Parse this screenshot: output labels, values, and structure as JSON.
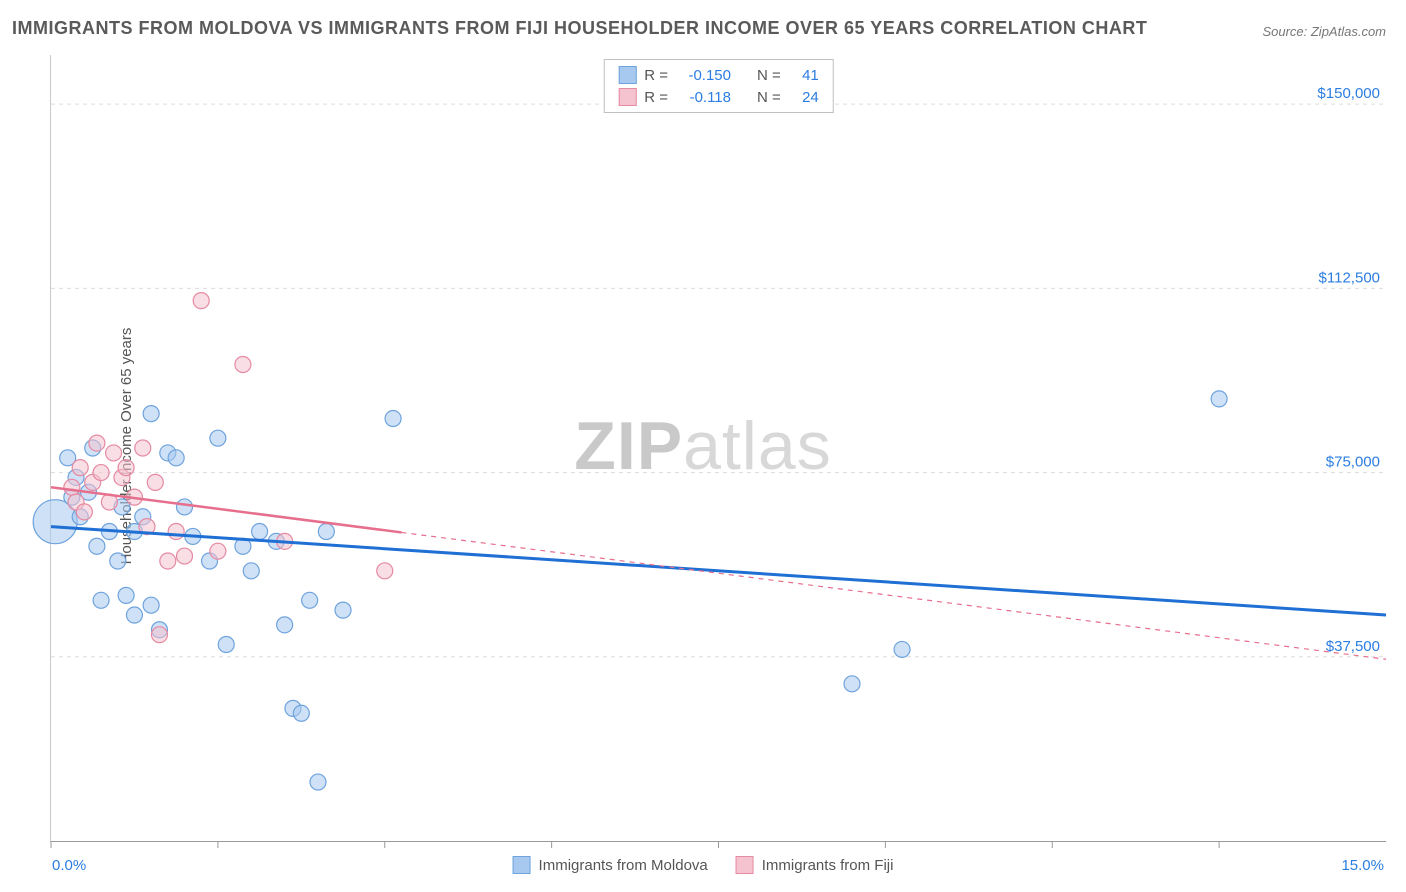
{
  "title": "IMMIGRANTS FROM MOLDOVA VS IMMIGRANTS FROM FIJI HOUSEHOLDER INCOME OVER 65 YEARS CORRELATION CHART",
  "source": "Source: ZipAtlas.com",
  "watermark_a": "ZIP",
  "watermark_b": "atlas",
  "y_axis_label": "Householder Income Over 65 years",
  "chart": {
    "type": "scatter",
    "xlim": [
      0,
      16
    ],
    "ylim": [
      0,
      160000
    ],
    "x_ticks": [
      0,
      2,
      4,
      6,
      8,
      10,
      12,
      14
    ],
    "x_tick_show_labels": false,
    "x_end_labels": {
      "min": "0.0%",
      "max": "15.0%"
    },
    "y_ticks": [
      37500,
      75000,
      112500,
      150000
    ],
    "y_tick_labels": [
      "$37,500",
      "$75,000",
      "$112,500",
      "$150,000"
    ],
    "grid_color": "#dcdcdc",
    "grid_dash": "4 4",
    "background_color": "#ffffff",
    "series": [
      {
        "name": "Immigrants from Moldova",
        "color_fill": "#a8c9ef",
        "color_stroke": "#6ea3dd",
        "fill_opacity": 0.55,
        "R": "-0.150",
        "N": "41",
        "marker_r": 8,
        "regression": {
          "color": "#1f6fd4",
          "width": 3,
          "x1": 0,
          "y1": 64000,
          "x2": 16,
          "y2": 46000,
          "dash_from": null
        },
        "points": [
          {
            "x": 0.05,
            "y": 65000,
            "r": 22
          },
          {
            "x": 0.2,
            "y": 78000
          },
          {
            "x": 0.25,
            "y": 70000
          },
          {
            "x": 0.3,
            "y": 74000
          },
          {
            "x": 0.35,
            "y": 66000
          },
          {
            "x": 0.45,
            "y": 71000
          },
          {
            "x": 0.5,
            "y": 80000
          },
          {
            "x": 0.55,
            "y": 60000
          },
          {
            "x": 0.6,
            "y": 49000
          },
          {
            "x": 0.7,
            "y": 63000
          },
          {
            "x": 0.8,
            "y": 57000
          },
          {
            "x": 0.85,
            "y": 68000
          },
          {
            "x": 0.9,
            "y": 50000
          },
          {
            "x": 1.0,
            "y": 46000
          },
          {
            "x": 1.0,
            "y": 63000
          },
          {
            "x": 1.1,
            "y": 66000
          },
          {
            "x": 1.2,
            "y": 87000
          },
          {
            "x": 1.2,
            "y": 48000
          },
          {
            "x": 1.3,
            "y": 43000
          },
          {
            "x": 1.4,
            "y": 79000
          },
          {
            "x": 1.5,
            "y": 78000
          },
          {
            "x": 1.6,
            "y": 68000
          },
          {
            "x": 1.7,
            "y": 62000
          },
          {
            "x": 1.9,
            "y": 57000
          },
          {
            "x": 2.0,
            "y": 82000
          },
          {
            "x": 2.1,
            "y": 40000
          },
          {
            "x": 2.3,
            "y": 60000
          },
          {
            "x": 2.4,
            "y": 55000
          },
          {
            "x": 2.5,
            "y": 63000
          },
          {
            "x": 2.7,
            "y": 61000
          },
          {
            "x": 2.8,
            "y": 44000
          },
          {
            "x": 2.9,
            "y": 27000
          },
          {
            "x": 3.0,
            "y": 26000
          },
          {
            "x": 3.1,
            "y": 49000
          },
          {
            "x": 3.2,
            "y": 12000
          },
          {
            "x": 3.3,
            "y": 63000
          },
          {
            "x": 3.5,
            "y": 47000
          },
          {
            "x": 4.1,
            "y": 86000
          },
          {
            "x": 9.6,
            "y": 32000
          },
          {
            "x": 10.2,
            "y": 39000
          },
          {
            "x": 14.0,
            "y": 90000
          }
        ]
      },
      {
        "name": "Immigrants from Fiji",
        "color_fill": "#f4c3cf",
        "color_stroke": "#e58aa2",
        "fill_opacity": 0.55,
        "R": "-0.118",
        "N": "24",
        "marker_r": 8,
        "regression": {
          "color": "#e66f8d",
          "width": 2.5,
          "x1": 0,
          "y1": 72000,
          "x2": 16,
          "y2": 37000,
          "dash_from": 4.2
        },
        "points": [
          {
            "x": 0.25,
            "y": 72000
          },
          {
            "x": 0.3,
            "y": 69000
          },
          {
            "x": 0.35,
            "y": 76000
          },
          {
            "x": 0.4,
            "y": 67000
          },
          {
            "x": 0.5,
            "y": 73000
          },
          {
            "x": 0.55,
            "y": 81000
          },
          {
            "x": 0.6,
            "y": 75000
          },
          {
            "x": 0.7,
            "y": 69000
          },
          {
            "x": 0.75,
            "y": 79000
          },
          {
            "x": 0.85,
            "y": 74000
          },
          {
            "x": 0.9,
            "y": 76000
          },
          {
            "x": 1.0,
            "y": 70000
          },
          {
            "x": 1.1,
            "y": 80000
          },
          {
            "x": 1.15,
            "y": 64000
          },
          {
            "x": 1.25,
            "y": 73000
          },
          {
            "x": 1.3,
            "y": 42000
          },
          {
            "x": 1.4,
            "y": 57000
          },
          {
            "x": 1.5,
            "y": 63000
          },
          {
            "x": 1.6,
            "y": 58000
          },
          {
            "x": 1.8,
            "y": 110000
          },
          {
            "x": 2.0,
            "y": 59000
          },
          {
            "x": 2.3,
            "y": 97000
          },
          {
            "x": 2.8,
            "y": 61000
          },
          {
            "x": 4.0,
            "y": 55000
          }
        ]
      }
    ]
  },
  "legend_top_labels": {
    "R": "R =",
    "N": "N ="
  },
  "legend_bottom": [
    "Immigrants from Moldova",
    "Immigrants from Fiji"
  ]
}
